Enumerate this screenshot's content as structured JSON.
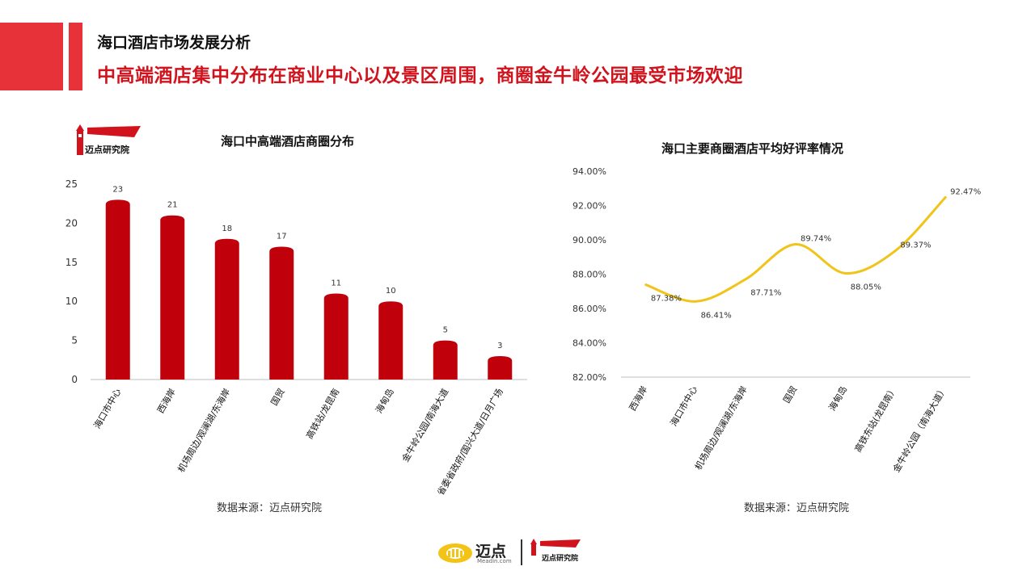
{
  "header": {
    "subtitle": "海口酒店市场发展分析",
    "headline": "中高端酒店集中分布在商业中心以及景区周围，商圈金牛岭公园最受市场欢迎"
  },
  "logo": {
    "text": "迈点研究院"
  },
  "footer": {
    "brand": "迈点",
    "brand_sub": "Meadin.com",
    "institute": "迈点研究院"
  },
  "colors": {
    "accent": "#e8323a",
    "headline": "#d0131c",
    "bar": "#c0000b",
    "line": "#f0c419"
  },
  "chart_data": [
    {
      "type": "bar",
      "title": "海口中高端酒店商圈分布",
      "source": "数据来源：迈点研究院",
      "categories": [
        "海口市中心",
        "西海岸",
        "机场周边/观澜湖/东海岸",
        "国贸",
        "高铁站/龙昆南",
        "海甸岛",
        "金牛岭公园/南海大道",
        "省委省政府/国兴大道/日月广场"
      ],
      "values": [
        23,
        21,
        18,
        17,
        11,
        10,
        5,
        3
      ],
      "ylim": [
        0,
        25
      ],
      "yticks": [
        "0",
        "5",
        "10",
        "15",
        "20",
        "25"
      ],
      "grid": false,
      "data_labels": true
    },
    {
      "type": "line",
      "title": "海口主要商圈酒店平均好评率情况",
      "source": "数据来源：迈点研究院",
      "categories": [
        "西海岸",
        "海口市中心",
        "机场周边/观澜湖/东海岸",
        "国贸",
        "海甸岛",
        "高铁东站(龙昆南）",
        "金牛岭公园（南海大道）"
      ],
      "values": [
        87.38,
        86.41,
        87.71,
        89.74,
        88.05,
        89.37,
        92.47
      ],
      "value_labels": [
        "87.38%",
        "86.41%",
        "87.71%",
        "89.74%",
        "88.05%",
        "89.37%",
        "92.47%"
      ],
      "ylim": [
        82,
        94
      ],
      "yticks": [
        "82.00%",
        "84.00%",
        "86.00%",
        "88.00%",
        "90.00%",
        "92.00%",
        "94.00%"
      ],
      "smooth": true,
      "grid": false
    }
  ]
}
